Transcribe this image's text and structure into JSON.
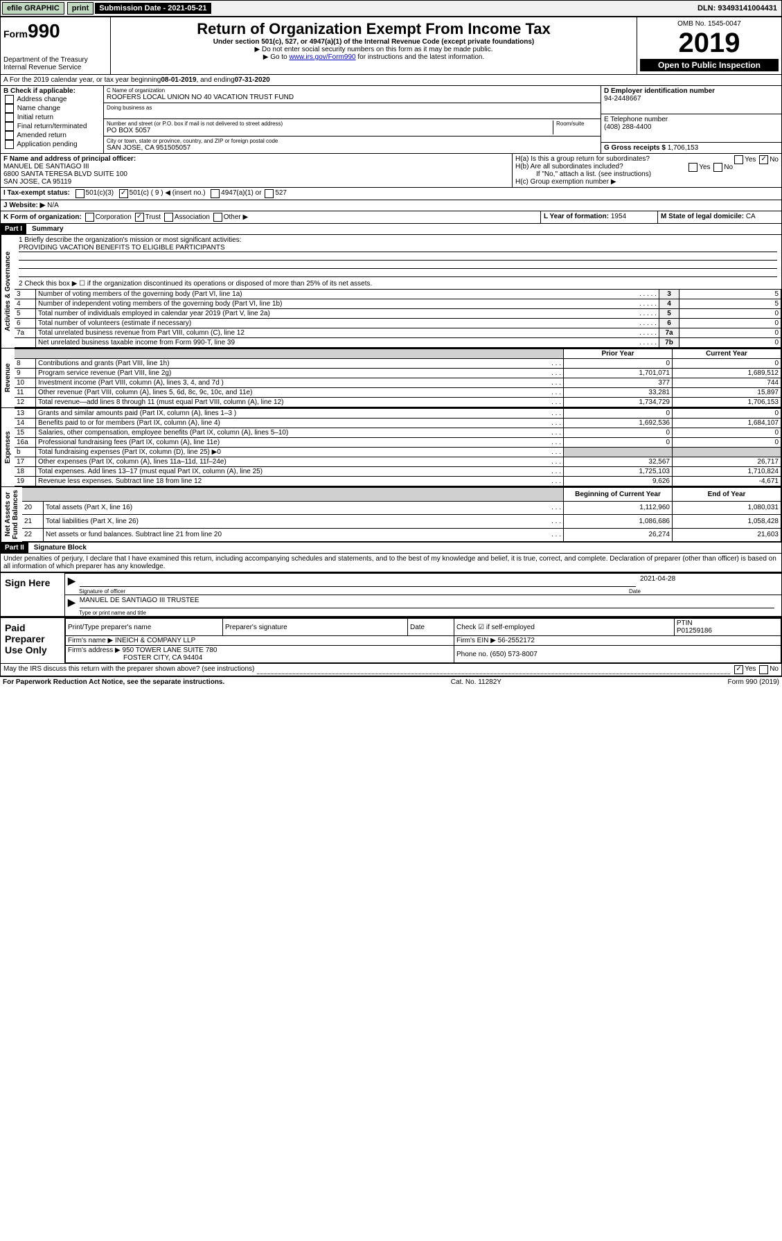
{
  "topbar": {
    "efile": "efile GRAPHIC",
    "print": "print",
    "subdate_label": "Submission Date - 2021-05-21",
    "dln": "DLN: 93493141004431"
  },
  "header": {
    "form_prefix": "Form",
    "form_no": "990",
    "dept": "Department of the Treasury\nInternal Revenue Service",
    "title": "Return of Organization Exempt From Income Tax",
    "subtitle": "Under section 501(c), 527, or 4947(a)(1) of the Internal Revenue Code (except private foundations)",
    "note1": "▶ Do not enter social security numbers on this form as it may be made public.",
    "note2_pre": "▶ Go to ",
    "note2_link": "www.irs.gov/Form990",
    "note2_post": " for instructions and the latest information.",
    "omb": "OMB No. 1545-0047",
    "year": "2019",
    "open": "Open to Public Inspection"
  },
  "periodA": {
    "pre": "A For the 2019 calendar year, or tax year beginning ",
    "start": "08-01-2019",
    "mid": " , and ending ",
    "end": "07-31-2020"
  },
  "boxB": {
    "title": "B Check if applicable:",
    "items": [
      "Address change",
      "Name change",
      "Initial return",
      "Final return/terminated",
      "Amended return",
      "Application pending"
    ]
  },
  "boxC": {
    "name_lbl": "C Name of organization",
    "name": "ROOFERS LOCAL UNION NO 40 VACATION TRUST FUND",
    "dba_lbl": "Doing business as",
    "addr_lbl": "Number and street (or P.O. box if mail is not delivered to street address)",
    "room_lbl": "Room/suite",
    "addr": "PO BOX 5057",
    "city_lbl": "City or town, state or province, country, and ZIP or foreign postal code",
    "city": "SAN JOSE, CA  951505057"
  },
  "boxD": {
    "lbl": "D Employer identification number",
    "val": "94-2448667"
  },
  "boxE": {
    "lbl": "E Telephone number",
    "val": "(408) 288-4400"
  },
  "boxG": {
    "lbl": "G Gross receipts $",
    "val": "1,706,153"
  },
  "boxF": {
    "lbl": "F Name and address of principal officer:",
    "line1": "MANUEL DE SANTIAGO III",
    "line2": "6800 SANTA TERESA BLVD SUITE 100",
    "line3": "SAN JOSE, CA  95119"
  },
  "boxH": {
    "a": "H(a)  Is this a group return for subordinates?",
    "b": "H(b)  Are all subordinates included?",
    "b_note": "If \"No,\" attach a list. (see instructions)",
    "c": "H(c)  Group exemption number ▶",
    "yes": "Yes",
    "no": "No"
  },
  "taxI": {
    "lbl": "I  Tax-exempt status:",
    "o1": "501(c)(3)",
    "o2": "501(c) ( 9 ) ◀ (insert no.)",
    "o3": "4947(a)(1) or",
    "o4": "527"
  },
  "website": {
    "lbl": "J  Website: ▶",
    "val": "N/A"
  },
  "boxK": {
    "lbl": "K Form of organization:",
    "o1": "Corporation",
    "o2": "Trust",
    "o3": "Association",
    "o4": "Other ▶"
  },
  "boxL": {
    "lbl": "L Year of formation:",
    "val": "1954"
  },
  "boxM": {
    "lbl": "M State of legal domicile:",
    "val": "CA"
  },
  "part1": {
    "hdr": "Part I",
    "title": "Summary"
  },
  "line1": {
    "q": "1  Briefly describe the organization's mission or most significant activities:",
    "a": "PROVIDING VACATION BENEFITS TO ELIGIBLE PARTICIPANTS"
  },
  "line2": "2  Check this box ▶ ☐  if the organization discontinued its operations or disposed of more than 25% of its net assets.",
  "summary_rows": [
    {
      "n": "3",
      "t": "Number of voting members of the governing body (Part VI, line 1a)",
      "l": "3",
      "v": "5"
    },
    {
      "n": "4",
      "t": "Number of independent voting members of the governing body (Part VI, line 1b)",
      "l": "4",
      "v": "5"
    },
    {
      "n": "5",
      "t": "Total number of individuals employed in calendar year 2019 (Part V, line 2a)",
      "l": "5",
      "v": "0"
    },
    {
      "n": "6",
      "t": "Total number of volunteers (estimate if necessary)",
      "l": "6",
      "v": "0"
    },
    {
      "n": "7a",
      "t": "Total unrelated business revenue from Part VIII, column (C), line 12",
      "l": "7a",
      "v": "0"
    },
    {
      "n": "",
      "t": "Net unrelated business taxable income from Form 990-T, line 39",
      "l": "7b",
      "v": "0"
    }
  ],
  "col_hdr": {
    "prior": "Prior Year",
    "curr": "Current Year",
    "beg": "Beginning of Current Year",
    "end": "End of Year"
  },
  "rev_rows": [
    {
      "n": "8",
      "t": "Contributions and grants (Part VIII, line 1h)",
      "p": "0",
      "c": "0"
    },
    {
      "n": "9",
      "t": "Program service revenue (Part VIII, line 2g)",
      "p": "1,701,071",
      "c": "1,689,512"
    },
    {
      "n": "10",
      "t": "Investment income (Part VIII, column (A), lines 3, 4, and 7d )",
      "p": "377",
      "c": "744"
    },
    {
      "n": "11",
      "t": "Other revenue (Part VIII, column (A), lines 5, 6d, 8c, 9c, 10c, and 11e)",
      "p": "33,281",
      "c": "15,897"
    },
    {
      "n": "12",
      "t": "Total revenue—add lines 8 through 11 (must equal Part VIII, column (A), line 12)",
      "p": "1,734,729",
      "c": "1,706,153"
    }
  ],
  "exp_rows": [
    {
      "n": "13",
      "t": "Grants and similar amounts paid (Part IX, column (A), lines 1–3 )",
      "p": "0",
      "c": "0"
    },
    {
      "n": "14",
      "t": "Benefits paid to or for members (Part IX, column (A), line 4)",
      "p": "1,692,536",
      "c": "1,684,107"
    },
    {
      "n": "15",
      "t": "Salaries, other compensation, employee benefits (Part IX, column (A), lines 5–10)",
      "p": "0",
      "c": "0"
    },
    {
      "n": "16a",
      "t": "Professional fundraising fees (Part IX, column (A), line 11e)",
      "p": "0",
      "c": "0"
    },
    {
      "n": "b",
      "t": "Total fundraising expenses (Part IX, column (D), line 25) ▶0",
      "p": "",
      "c": ""
    },
    {
      "n": "17",
      "t": "Other expenses (Part IX, column (A), lines 11a–11d, 11f–24e)",
      "p": "32,567",
      "c": "26,717"
    },
    {
      "n": "18",
      "t": "Total expenses. Add lines 13–17 (must equal Part IX, column (A), line 25)",
      "p": "1,725,103",
      "c": "1,710,824"
    },
    {
      "n": "19",
      "t": "Revenue less expenses. Subtract line 18 from line 12",
      "p": "9,626",
      "c": "-4,671"
    }
  ],
  "na_rows": [
    {
      "n": "20",
      "t": "Total assets (Part X, line 16)",
      "p": "1,112,960",
      "c": "1,080,031"
    },
    {
      "n": "21",
      "t": "Total liabilities (Part X, line 26)",
      "p": "1,086,686",
      "c": "1,058,428"
    },
    {
      "n": "22",
      "t": "Net assets or fund balances. Subtract line 21 from line 20",
      "p": "26,274",
      "c": "21,603"
    }
  ],
  "sides": {
    "ag": "Activities & Governance",
    "rev": "Revenue",
    "exp": "Expenses",
    "na": "Net Assets or\nFund Balances"
  },
  "part2": {
    "hdr": "Part II",
    "title": "Signature Block"
  },
  "perjury": "Under penalties of perjury, I declare that I have examined this return, including accompanying schedules and statements, and to the best of my knowledge and belief, it is true, correct, and complete. Declaration of preparer (other than officer) is based on all information of which preparer has any knowledge.",
  "sign": {
    "here": "Sign Here",
    "sig_lbl": "Signature of officer",
    "date": "2021-04-28",
    "date_lbl": "Date",
    "name": "MANUEL DE SANTIAGO III  TRUSTEE",
    "name_lbl": "Type or print name and title"
  },
  "paid": {
    "hdr": "Paid Preparer Use Only",
    "col1": "Print/Type preparer's name",
    "col2": "Preparer's signature",
    "col3": "Date",
    "chk_lbl": "Check ☑ if self-employed",
    "ptin_lbl": "PTIN",
    "ptin": "P01259186",
    "firm_name_lbl": "Firm's name   ▶",
    "firm_name": "INEICH & COMPANY LLP",
    "firm_ein_lbl": "Firm's EIN ▶",
    "firm_ein": "56-2552172",
    "firm_addr_lbl": "Firm's address ▶",
    "firm_addr1": "950 TOWER LANE SUITE 780",
    "firm_addr2": "FOSTER CITY, CA  94404",
    "phone_lbl": "Phone no.",
    "phone": "(650) 573-8007"
  },
  "discuss": "May the IRS discuss this return with the preparer shown above? (see instructions)",
  "footer": {
    "pra": "For Paperwork Reduction Act Notice, see the separate instructions.",
    "cat": "Cat. No. 11282Y",
    "form": "Form 990 (2019)"
  }
}
